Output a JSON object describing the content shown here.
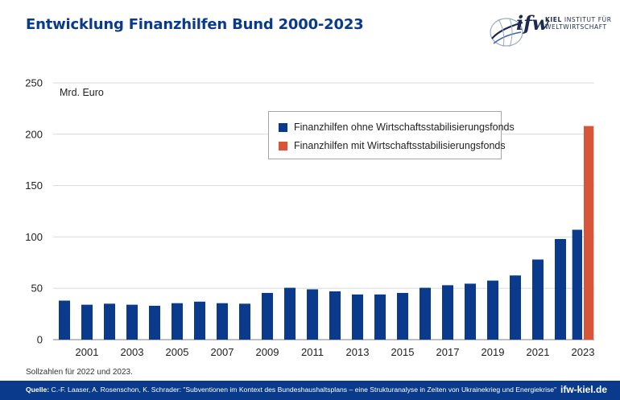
{
  "header": {
    "title": "Entwicklung Finanzhilfen Bund 2000-2023",
    "logo_mark": "ifw",
    "logo_line1_bold": "KIEL",
    "logo_line1_rest": " INSTITUT FÜR",
    "logo_line2": "WELTWIRTSCHAFT"
  },
  "chart_data": {
    "type": "bar",
    "unit_label": "Mrd. Euro",
    "ylim": [
      0,
      250
    ],
    "yticks": [
      0,
      50,
      100,
      150,
      200,
      250
    ],
    "years": [
      2000,
      2001,
      2002,
      2003,
      2004,
      2005,
      2006,
      2007,
      2008,
      2009,
      2010,
      2011,
      2012,
      2013,
      2014,
      2015,
      2016,
      2017,
      2018,
      2019,
      2020,
      2021,
      2022,
      2023
    ],
    "xtick_labels": [
      "2001",
      "2003",
      "2005",
      "2007",
      "2009",
      "2011",
      "2013",
      "2015",
      "2017",
      "2019",
      "2021",
      "2023"
    ],
    "grid": true,
    "legend_position": "top-center",
    "series": [
      {
        "name": "Finanzhilfen ohne Wirtschaftsstabilisierungsfonds",
        "color": "#0a3a8c",
        "values": [
          38,
          34,
          35,
          34,
          33,
          35.5,
          37,
          35.5,
          35,
          45.5,
          50.5,
          49,
          47,
          44,
          44,
          45.5,
          50.5,
          53,
          54.5,
          57.5,
          62.5,
          78,
          98,
          107
        ]
      },
      {
        "name": "Finanzhilfen mit Wirtschaftsstabilisierungsfonds",
        "color": "#d9553a",
        "values": [
          null,
          null,
          null,
          null,
          null,
          null,
          null,
          null,
          null,
          null,
          null,
          null,
          null,
          null,
          null,
          null,
          null,
          null,
          null,
          null,
          null,
          null,
          null,
          208
        ]
      }
    ]
  },
  "note": "Sollzahlen für 2022 und 2023.",
  "footer": {
    "source_label": "Quelle:",
    "source_text": " C.-F. Laaser, A. Rosenschon, K. Schrader: \"Subventionen im Kontext des Bundeshaushaltsplans – eine Strukturanalyse in Zeiten von Ukrainekrieg und Energiekrise\"",
    "url": "ifw-kiel.de"
  }
}
